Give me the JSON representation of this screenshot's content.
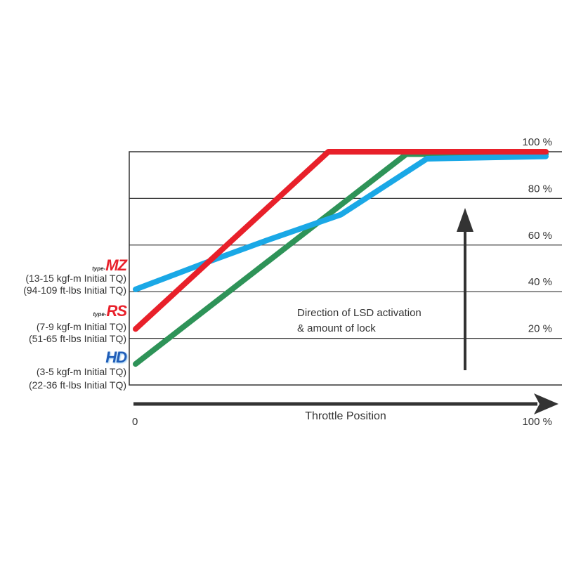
{
  "chart_data": {
    "type": "line",
    "xlabel": "Throttle Position",
    "x_tick_labels": [
      "0",
      "100 %"
    ],
    "y_tick_labels": [
      "20 %",
      "40 %",
      "60 %",
      "80 %",
      "100 %"
    ],
    "xlim": [
      0,
      100
    ],
    "ylim": [
      0,
      100
    ],
    "grid": true,
    "annotation": [
      "Direction of LSD activation",
      "& amount of lock"
    ],
    "series": [
      {
        "color": "#e8202a",
        "x": [
          0,
          47,
          100
        ],
        "y": [
          24,
          100,
          100
        ]
      },
      {
        "color": "#2e9358",
        "x": [
          0,
          66,
          100
        ],
        "y": [
          9,
          99,
          99
        ]
      },
      {
        "color": "#1aa8e6",
        "x": [
          0,
          18,
          32,
          50,
          71,
          100
        ],
        "y": [
          41,
          53,
          62,
          73,
          97,
          98
        ]
      }
    ]
  },
  "legend": [
    {
      "logo_prefix": "type-",
      "logo": "MZ",
      "color": "#e8202a",
      "line1": "(13-15 kgf-m Initial TQ)",
      "line2": "(94-109 ft-lbs Initial TQ)"
    },
    {
      "logo_prefix": "type-",
      "logo": "RS",
      "color": "#e8202a",
      "line1": "(7-9 kgf-m Initial TQ)",
      "line2": "(51-65 ft-lbs Initial TQ)"
    },
    {
      "logo_prefix": "",
      "logo": "HD",
      "color": "#1f5db8",
      "line1": "(3-5 kgf-m Initial TQ)",
      "line2": "(22-36 ft-lbs Initial TQ)"
    }
  ]
}
